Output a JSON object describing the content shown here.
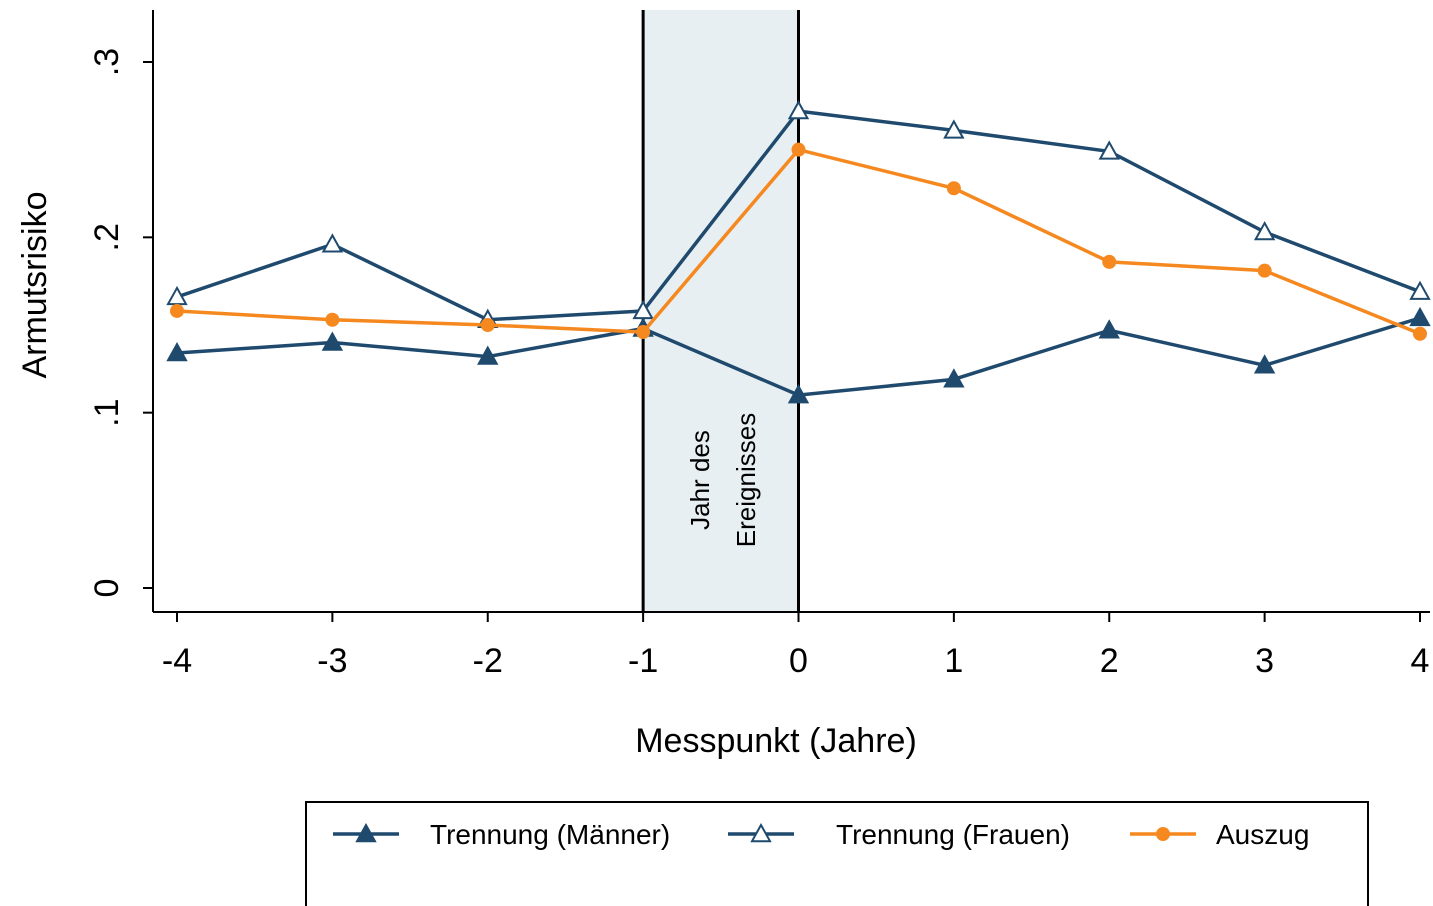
{
  "chart_data": {
    "type": "line",
    "xlabel": "Messpunkt (Jahre)",
    "ylabel": "Armutsrisiko",
    "x": [
      -4,
      -3,
      -2,
      -1,
      0,
      1,
      2,
      3,
      4
    ],
    "xlim": [
      -4,
      4
    ],
    "ylim": [
      0,
      0.3
    ],
    "x_ticks": [
      "-4",
      "-3",
      "-2",
      "-1",
      "0",
      "1",
      "2",
      "3",
      "4"
    ],
    "y_ticks": [
      {
        "value": 0,
        "label": "0"
      },
      {
        "value": 0.1,
        "label": ".1"
      },
      {
        "value": 0.2,
        "label": ".2"
      },
      {
        "value": 0.3,
        "label": ".3"
      }
    ],
    "grid": false,
    "legend_position": "bottom",
    "shaded_region": {
      "x_from": -1,
      "x_to": 0,
      "label_lines": [
        "Jahr des",
        "Ereignisses"
      ],
      "color": "#e8eff2"
    },
    "series": [
      {
        "name": "Trennung (Männer)",
        "marker": "filled-triangle",
        "color": "#1f4a6e",
        "values": [
          0.134,
          0.14,
          0.132,
          0.148,
          0.11,
          0.119,
          0.147,
          0.127,
          0.154
        ]
      },
      {
        "name": "Trennung (Frauen)",
        "marker": "hollow-triangle",
        "color": "#1f4a6e",
        "values": [
          0.166,
          0.196,
          0.153,
          0.158,
          0.272,
          0.261,
          0.249,
          0.203,
          0.169
        ]
      },
      {
        "name": "Auszug",
        "marker": "filled-circle",
        "color": "#f5881f",
        "values": [
          0.158,
          0.153,
          0.15,
          0.146,
          0.25,
          0.228,
          0.186,
          0.181,
          0.145
        ]
      }
    ]
  }
}
